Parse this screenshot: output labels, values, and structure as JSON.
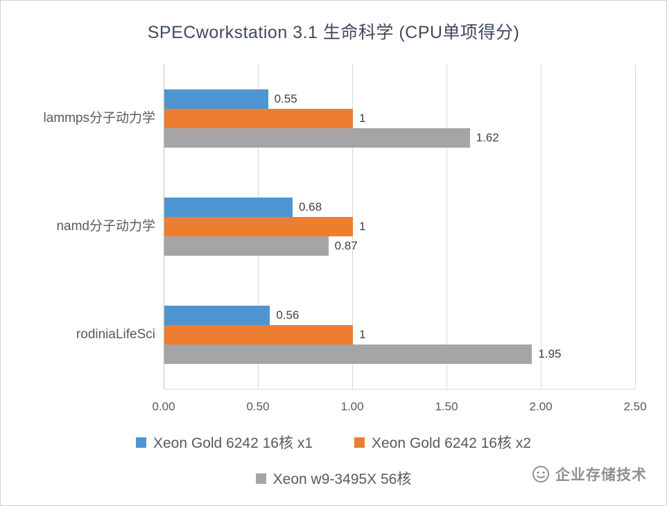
{
  "title": "SPECworkstation 3.1 生命科学 (CPU单项得分)",
  "watermark": {
    "text": "企业存储技术",
    "icon": "wechat-official-account-icon"
  },
  "chart_data": {
    "type": "bar",
    "orientation": "horizontal",
    "title": "SPECworkstation 3.1 生命科学 (CPU单项得分)",
    "categories": [
      "lammps分子动力学",
      "namd分子动力学",
      "rodiniaLifeSci"
    ],
    "series": [
      {
        "name": "Xeon Gold 6242 16核 x1",
        "color": "#4D96D2",
        "values": [
          0.55,
          0.68,
          0.56
        ]
      },
      {
        "name": "Xeon Gold 6242 16核 x2",
        "color": "#ED7D31",
        "values": [
          1,
          1,
          1
        ]
      },
      {
        "name": "Xeon w9-3495X 56核",
        "color": "#A5A5A5",
        "values": [
          1.62,
          0.87,
          1.95
        ]
      }
    ],
    "xlim": [
      0,
      2.5
    ],
    "x_ticks": [
      {
        "value": 0.0,
        "label": "0.00"
      },
      {
        "value": 0.5,
        "label": "0.50"
      },
      {
        "value": 1.0,
        "label": "1.00"
      },
      {
        "value": 1.5,
        "label": "1.50"
      },
      {
        "value": 2.0,
        "label": "2.00"
      },
      {
        "value": 2.5,
        "label": "2.50"
      }
    ],
    "value_labels": true,
    "grid": true,
    "legend_position": "bottom"
  }
}
